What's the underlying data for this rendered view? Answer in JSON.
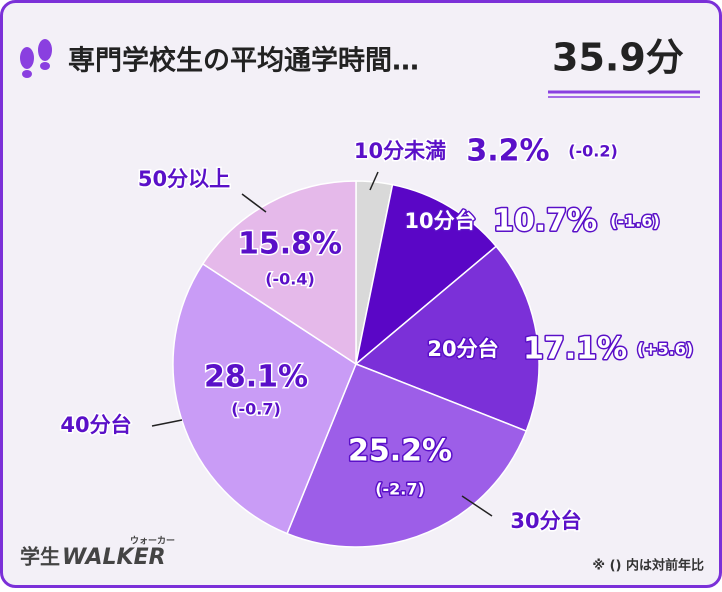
{
  "chart_data": {
    "type": "pie",
    "title": "専門学校生の平均通学時間…",
    "headline_value": "35.9分",
    "categories": [
      "10分未満",
      "10分台",
      "20分台",
      "30分台",
      "40分台",
      "50分以上"
    ],
    "values": [
      3.2,
      10.7,
      17.1,
      25.2,
      28.1,
      15.8
    ],
    "value_labels": [
      "3.2%",
      "10.7%",
      "17.1%",
      "25.2%",
      "28.1%",
      "15.8%"
    ],
    "changes": [
      "(-0.2)",
      "(-1.6)",
      "(+5.6)",
      "(-2.7)",
      "(-0.7)",
      "(-0.4)"
    ],
    "colors": [
      "#d9d9d9",
      "#5a06c6",
      "#7b30d8",
      "#9d5ee8",
      "#c99cf6",
      "#e5b9ea"
    ],
    "footnote": "※ () 内は対前年比",
    "logo": {
      "prefix": "学生",
      "brand": "WALKER",
      "reading": "ウォーカー"
    }
  }
}
